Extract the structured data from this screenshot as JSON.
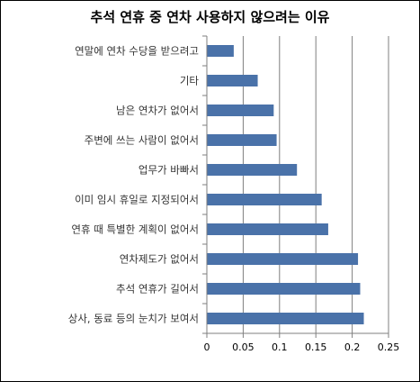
{
  "chart_data": {
    "type": "bar",
    "orientation": "horizontal",
    "title": "추석 연휴 중 연차 사용하지 않으려는 이유",
    "xlabel": "",
    "ylabel": "",
    "categories": [
      "연말에 연차 수당을 받으려고",
      "기타",
      "남은 연차가 없어서",
      "주변에 쓰는 사람이 없어서",
      "업무가 바빠서",
      "이미 임시 휴일로 지정되어서",
      "연휴 때 특별한 계획이 없어서",
      "연차제도가 없어서",
      "추석 연휴가 길어서",
      "상사, 동료 등의 눈치가 보여서"
    ],
    "values": [
      0.037,
      0.07,
      0.092,
      0.096,
      0.124,
      0.158,
      0.167,
      0.208,
      0.211,
      0.216
    ],
    "xlim": [
      0,
      0.25
    ],
    "xticks": [
      "0",
      "0.05",
      "0.1",
      "0.15",
      "0.2",
      "0.25"
    ],
    "xtick_values": [
      0,
      0.05,
      0.1,
      0.15,
      0.2,
      0.25
    ],
    "grid": true,
    "bar_color": "#4a72a9",
    "grid_color": "#7f7f7f"
  }
}
